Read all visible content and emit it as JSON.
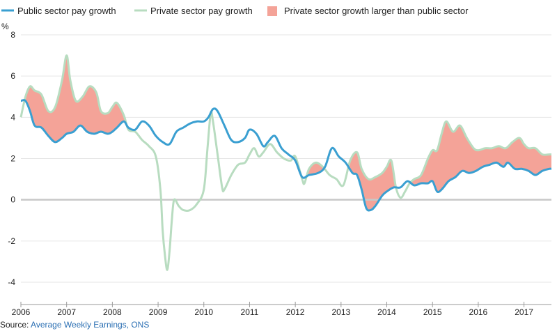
{
  "chart_data": {
    "type": "line",
    "ylabel_unit": "%",
    "ylim": [
      -5,
      8
    ],
    "y_ticks": [
      8,
      6,
      4,
      2,
      0,
      -2,
      -4
    ],
    "y_tick_labels": [
      "8",
      "6",
      "4",
      "2",
      "0",
      "-2",
      "-4"
    ],
    "xlim": [
      2006.0,
      2017.6
    ],
    "x_ticks": [
      2006,
      2007,
      2008,
      2009,
      2010,
      2011,
      2012,
      2013,
      2014,
      2015,
      2016,
      2017
    ],
    "x_tick_labels": [
      "2006",
      "2007",
      "2008",
      "2009",
      "2010",
      "2011",
      "2012",
      "2013",
      "2014",
      "2015",
      "2016",
      "2017"
    ],
    "grid": true,
    "legend_position": "top-left",
    "legend": {
      "public": "Public sector pay growth",
      "private": "Private sector pay growth",
      "area": "Private sector growth larger than public sector"
    },
    "colors": {
      "public": "#3a9fd1",
      "private": "#b8dcc0",
      "area": "#f4a398",
      "zero_line": "#c8c8c8",
      "grid": "#e6e6e6",
      "source_link": "#2b6fb3"
    },
    "series": [
      {
        "name": "Public sector pay growth",
        "x": [
          2006.0,
          2006.1,
          2006.2,
          2006.3,
          2006.45,
          2006.6,
          2006.75,
          2006.9,
          2007.0,
          2007.15,
          2007.3,
          2007.45,
          2007.6,
          2007.75,
          2007.9,
          2008.0,
          2008.1,
          2008.25,
          2008.35,
          2008.5,
          2008.65,
          2008.8,
          2008.95,
          2009.1,
          2009.25,
          2009.4,
          2009.55,
          2009.7,
          2009.85,
          2010.0,
          2010.1,
          2010.2,
          2010.3,
          2010.45,
          2010.6,
          2010.75,
          2010.9,
          2011.0,
          2011.15,
          2011.3,
          2011.4,
          2011.55,
          2011.7,
          2011.85,
          2012.0,
          2012.15,
          2012.3,
          2012.5,
          2012.65,
          2012.8,
          2012.95,
          2013.1,
          2013.25,
          2013.35,
          2013.45,
          2013.55,
          2013.65,
          2013.75,
          2013.9,
          2014.0,
          2014.15,
          2014.3,
          2014.45,
          2014.6,
          2014.75,
          2014.9,
          2015.0,
          2015.1,
          2015.2,
          2015.35,
          2015.5,
          2015.65,
          2015.8,
          2015.95,
          2016.1,
          2016.25,
          2016.4,
          2016.55,
          2016.65,
          2016.8,
          2016.95,
          2017.1,
          2017.25,
          2017.4,
          2017.55,
          2017.6
        ],
        "values": [
          4.8,
          4.8,
          4.3,
          3.6,
          3.5,
          3.1,
          2.8,
          3.0,
          3.2,
          3.3,
          3.6,
          3.3,
          3.2,
          3.3,
          3.2,
          3.3,
          3.5,
          3.8,
          3.5,
          3.4,
          3.8,
          3.6,
          3.1,
          2.8,
          2.7,
          3.3,
          3.5,
          3.7,
          3.8,
          3.8,
          4.0,
          4.4,
          4.3,
          3.6,
          2.9,
          2.8,
          3.0,
          3.4,
          3.2,
          2.6,
          2.8,
          3.1,
          2.5,
          2.2,
          1.9,
          1.1,
          1.2,
          1.3,
          1.6,
          2.5,
          2.1,
          1.8,
          1.3,
          1.2,
          0.5,
          -0.4,
          -0.5,
          -0.3,
          0.2,
          0.4,
          0.6,
          0.6,
          0.9,
          0.7,
          0.8,
          0.8,
          0.9,
          0.4,
          0.5,
          0.9,
          1.1,
          1.4,
          1.3,
          1.4,
          1.6,
          1.7,
          1.8,
          1.6,
          1.8,
          1.5,
          1.5,
          1.4,
          1.2,
          1.4,
          1.5,
          1.5
        ]
      },
      {
        "name": "Private sector pay growth",
        "x": [
          2006.0,
          2006.1,
          2006.2,
          2006.3,
          2006.45,
          2006.6,
          2006.75,
          2006.9,
          2007.0,
          2007.08,
          2007.2,
          2007.35,
          2007.5,
          2007.65,
          2007.75,
          2007.9,
          2008.0,
          2008.1,
          2008.25,
          2008.35,
          2008.5,
          2008.65,
          2008.8,
          2008.95,
          2009.05,
          2009.1,
          2009.15,
          2009.2,
          2009.25,
          2009.3,
          2009.35,
          2009.45,
          2009.55,
          2009.7,
          2009.85,
          2010.0,
          2010.08,
          2010.15,
          2010.2,
          2010.3,
          2010.4,
          2010.45,
          2010.6,
          2010.75,
          2010.9,
          2011.0,
          2011.1,
          2011.2,
          2011.3,
          2011.45,
          2011.6,
          2011.75,
          2011.9,
          2012.0,
          2012.15,
          2012.2,
          2012.3,
          2012.45,
          2012.6,
          2012.75,
          2012.9,
          2013.05,
          2013.2,
          2013.35,
          2013.45,
          2013.6,
          2013.75,
          2013.9,
          2014.0,
          2014.1,
          2014.2,
          2014.3,
          2014.4,
          2014.5,
          2014.6,
          2014.75,
          2014.9,
          2015.0,
          2015.1,
          2015.2,
          2015.3,
          2015.45,
          2015.6,
          2015.75,
          2015.9,
          2016.0,
          2016.15,
          2016.3,
          2016.45,
          2016.6,
          2016.75,
          2016.9,
          2017.0,
          2017.1,
          2017.25,
          2017.4,
          2017.55,
          2017.6
        ],
        "values": [
          4.0,
          5.0,
          5.5,
          5.3,
          5.1,
          4.3,
          4.5,
          5.8,
          7.0,
          5.8,
          4.8,
          5.0,
          5.5,
          5.2,
          4.3,
          4.2,
          4.5,
          4.7,
          4.1,
          3.4,
          3.3,
          2.9,
          2.6,
          2.1,
          0.5,
          -1.5,
          -2.7,
          -3.4,
          -2.5,
          -1.0,
          0.0,
          -0.3,
          -0.5,
          -0.5,
          -0.2,
          0.5,
          2.5,
          4.2,
          3.8,
          2.2,
          0.6,
          0.5,
          1.2,
          1.7,
          1.8,
          2.2,
          2.5,
          2.1,
          2.3,
          2.7,
          2.3,
          2.0,
          1.9,
          2.1,
          1.0,
          0.8,
          1.5,
          1.8,
          1.6,
          1.2,
          1.0,
          0.7,
          1.9,
          2.3,
          1.5,
          1.0,
          1.1,
          1.3,
          1.6,
          1.9,
          0.6,
          0.1,
          0.4,
          0.8,
          1.0,
          1.2,
          2.0,
          2.4,
          2.4,
          3.2,
          3.8,
          3.3,
          3.6,
          3.0,
          2.5,
          2.4,
          2.5,
          2.5,
          2.6,
          2.5,
          2.8,
          3.0,
          2.7,
          2.5,
          2.5,
          2.2,
          2.2,
          2.2
        ]
      }
    ]
  },
  "source": {
    "prefix": "Source: ",
    "link_text": "Average Weekly Earnings, ONS"
  }
}
